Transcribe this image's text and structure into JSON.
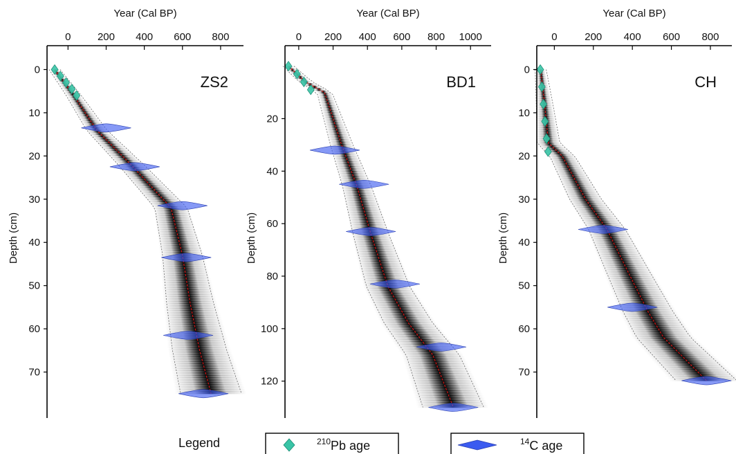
{
  "chart_data": [
    {
      "type": "line",
      "title": "ZS2",
      "xlabel": "Year (Cal BP)",
      "ylabel": "Depth (cm)",
      "xlim": [
        -110,
        920
      ],
      "ylim": [
        -2,
        80
      ],
      "xticks": [
        0,
        200,
        400,
        600,
        800
      ],
      "yticks": [
        0,
        10,
        20,
        30,
        40,
        50,
        60,
        70
      ],
      "series": [
        {
          "x": [
            -70,
            30,
            150,
            330,
            540,
            600,
            640,
            690,
            750
          ],
          "y": [
            0,
            6,
            14,
            22,
            32,
            43,
            54,
            65,
            75
          ]
        },
        {
          "x": [
            -70,
            -40,
            -10,
            20,
            45
          ],
          "y": [
            0,
            1.5,
            3,
            4.5,
            6
          ]
        },
        {
          "x": [
            200,
            350,
            600,
            620,
            630,
            710
          ],
          "y": [
            13.5,
            22.5,
            31.5,
            43.5,
            61.5,
            75
          ]
        }
      ]
    },
    {
      "type": "line",
      "title": "BD1",
      "xlabel": "Year (Cal BP)",
      "ylabel": "Depth (cm)",
      "xlim": [
        -80,
        1120
      ],
      "ylim": [
        -2,
        133
      ],
      "xticks": [
        0,
        200,
        400,
        600,
        800,
        1000
      ],
      "yticks": [
        20,
        40,
        60,
        80,
        100,
        120
      ],
      "series": [
        {
          "x": [
            -60,
            40,
            150,
            250,
            340,
            420,
            520,
            640,
            780,
            900
          ],
          "y": [
            0,
            6,
            10,
            30,
            46,
            64,
            84,
            98,
            110,
            130
          ]
        },
        {
          "x": [
            -60,
            -10,
            30,
            70
          ],
          "y": [
            0,
            3,
            6,
            9
          ]
        },
        {
          "x": [
            210,
            380,
            420,
            560,
            830,
            900
          ],
          "y": [
            32,
            45,
            63,
            83,
            107,
            130
          ]
        }
      ]
    },
    {
      "type": "line",
      "title": "CH",
      "xlabel": "Year (Cal BP)",
      "ylabel": "Depth (cm)",
      "xlim": [
        -90,
        910
      ],
      "ylim": [
        -2,
        80
      ],
      "xticks": [
        0,
        200,
        400,
        600,
        800
      ],
      "yticks": [
        0,
        10,
        20,
        30,
        40,
        50,
        60,
        70
      ],
      "series": [
        {
          "x": [
            -70,
            -50,
            -30,
            40,
            160,
            270,
            380,
            480,
            560,
            780
          ],
          "y": [
            0,
            8,
            17,
            20,
            30,
            37,
            47,
            56,
            62,
            72
          ]
        },
        {
          "x": [
            -72,
            -64,
            -56,
            -48,
            -40,
            -32
          ],
          "y": [
            0,
            4,
            8,
            12,
            16,
            19
          ]
        },
        {
          "x": [
            250,
            400,
            780
          ],
          "y": [
            37,
            55,
            72
          ]
        }
      ]
    }
  ],
  "legend": {
    "title": "Legend",
    "pb_sup": "210",
    "pb_text": "Pb age",
    "c_sup": "14",
    "c_text": "C age"
  },
  "colors": {
    "pb": "#39c4a6",
    "c14": "#3b5bf0",
    "median": "#d21414"
  }
}
